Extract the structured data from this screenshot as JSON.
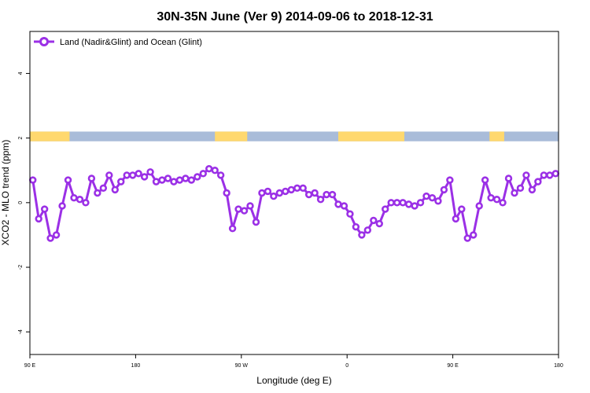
{
  "chart_data": {
    "type": "line",
    "title": "30N-35N June (Ver 9)   2014-09-06 to 2018-12-31",
    "xlabel": "Longitude (deg E)",
    "ylabel": "XCO2 - MLO trend (ppm)",
    "xlim": [
      90,
      450
    ],
    "ylim": [
      -4.7,
      5.3
    ],
    "x_ticks": [
      90,
      162,
      234,
      306,
      378,
      450
    ],
    "x_tick_labels": [
      "90 E",
      "180",
      "90 W",
      "0",
      "90 E",
      "180"
    ],
    "y_ticks": [
      -4,
      -2,
      0,
      2,
      4
    ],
    "y_tick_labels": [
      "-4",
      "-2",
      "0",
      "2",
      "4"
    ],
    "grid": false,
    "legend_position": "top-left",
    "colors": {
      "series": "#9B30E6",
      "land": "#FFD86E",
      "ocean": "#A9BCD9"
    },
    "land_ocean_band": {
      "y_range": [
        1.9,
        2.2
      ],
      "land_intervals": [
        [
          90,
          117
        ],
        [
          216,
          238
        ],
        [
          300,
          345
        ],
        [
          403,
          413
        ]
      ]
    },
    "series": [
      {
        "name": "Land (Nadir&Glint) and Ocean (Glint)",
        "x": [
          92,
          96,
          100,
          104,
          108,
          112,
          116,
          120,
          124,
          128,
          132,
          136,
          140,
          144,
          148,
          152,
          156,
          160,
          164,
          168,
          172,
          176,
          180,
          184,
          188,
          192,
          196,
          200,
          204,
          208,
          212,
          216,
          220,
          224,
          228,
          232,
          236,
          240,
          244,
          248,
          252,
          256,
          260,
          264,
          268,
          272,
          276,
          280,
          284,
          288,
          292,
          296,
          300,
          304,
          308,
          312,
          316,
          320,
          324,
          328,
          332,
          336,
          340,
          344,
          348,
          352,
          356,
          360,
          364,
          368,
          372,
          376,
          380,
          384,
          388,
          392,
          396,
          400,
          404,
          408,
          412,
          416,
          420,
          424,
          428,
          432,
          436,
          440,
          444,
          448
        ],
        "values": [
          0.7,
          -0.5,
          -0.2,
          -1.1,
          -1.0,
          -0.1,
          0.7,
          0.15,
          0.1,
          0.0,
          0.75,
          0.3,
          0.45,
          0.85,
          0.4,
          0.65,
          0.85,
          0.85,
          0.9,
          0.8,
          0.95,
          0.65,
          0.7,
          0.75,
          0.65,
          0.7,
          0.75,
          0.7,
          0.8,
          0.9,
          1.05,
          1.0,
          0.85,
          0.3,
          -0.8,
          -0.2,
          -0.25,
          -0.1,
          -0.6,
          0.3,
          0.35,
          0.2,
          0.3,
          0.35,
          0.4,
          0.45,
          0.45,
          0.25,
          0.3,
          0.1,
          0.25,
          0.25,
          -0.05,
          -0.1,
          -0.35,
          -0.75,
          -1.0,
          -0.85,
          -0.55,
          -0.65,
          -0.2,
          0.0,
          0.0,
          0.0,
          -0.05,
          -0.1,
          0.0,
          0.2,
          0.15,
          0.05,
          0.4,
          0.7,
          -0.5,
          -0.2,
          -1.1,
          -1.0,
          -0.1,
          0.7,
          0.15,
          0.1,
          0.0,
          0.75,
          0.3,
          0.45,
          0.85,
          0.4,
          0.65,
          0.85,
          0.85,
          0.9
        ]
      }
    ]
  }
}
